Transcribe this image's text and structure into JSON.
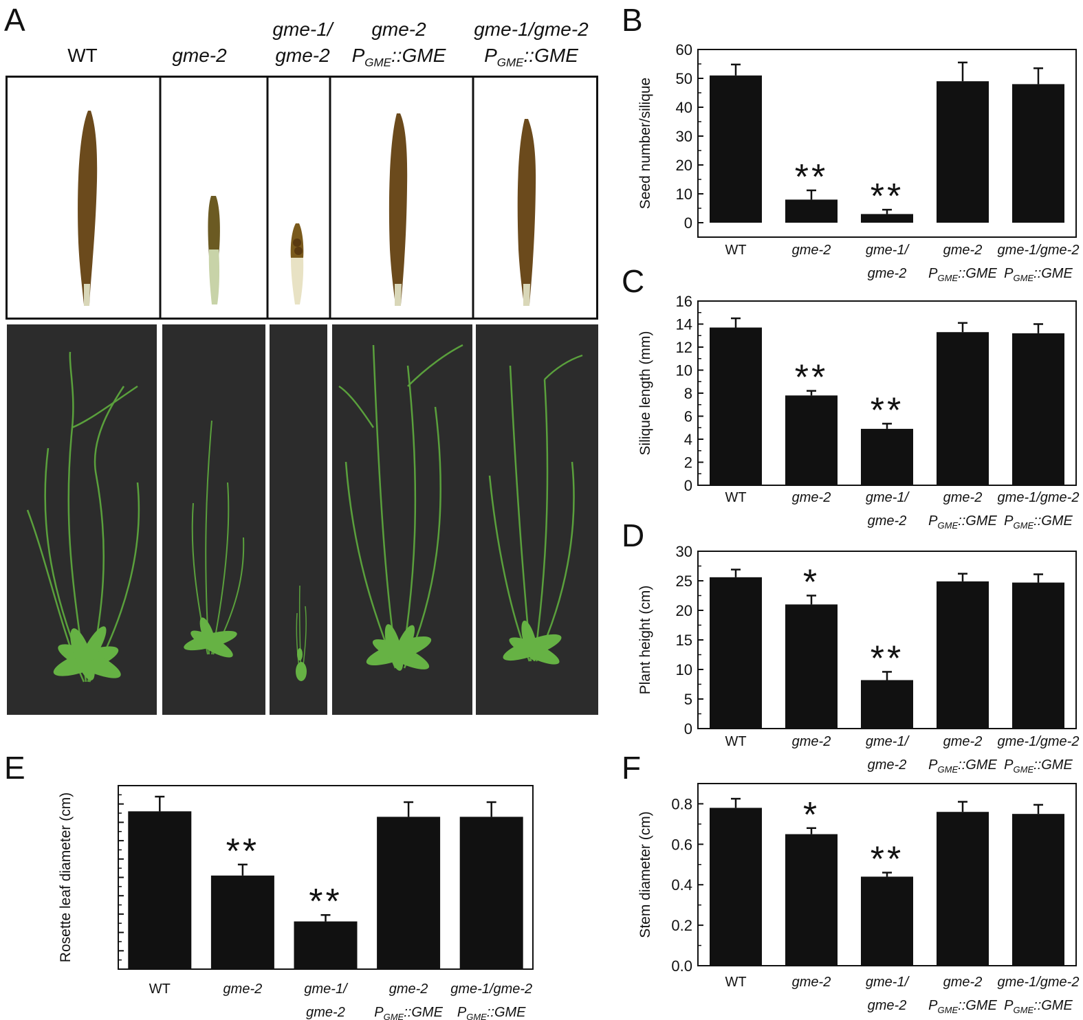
{
  "panel_letters": {
    "a": "A",
    "b": "B",
    "c": "C",
    "d": "D",
    "e": "E",
    "f": "F"
  },
  "genotypes": [
    {
      "line1": "WT",
      "line2": "",
      "promoter": "",
      "sub": "",
      "suffix": ""
    },
    {
      "line1": "gme-2",
      "line2": "",
      "promoter": "",
      "sub": "",
      "suffix": ""
    },
    {
      "line1": "gme-1/",
      "line2": "gme-2",
      "promoter": "",
      "sub": "",
      "suffix": ""
    },
    {
      "line1": "gme-2",
      "line2": "",
      "promoter": "P",
      "sub": "GME",
      "suffix": "::GME"
    },
    {
      "line1": "gme-1/gme-2",
      "line2": "",
      "promoter": "P",
      "sub": "GME",
      "suffix": "::GME"
    }
  ],
  "colors": {
    "bar": "#111111",
    "photo_bg": "#2c2c2c",
    "silique": "#6b4a1c",
    "seed": "#4a3210",
    "stem": "#5aa03c",
    "leaf": "#66b244"
  },
  "chart_data": [
    {
      "panel": "B",
      "type": "bar",
      "ylabel": "Seed number/silique",
      "categories": [
        "WT",
        "gme-2",
        "gme-1/gme-2",
        "gme-2 PGME::GME",
        "gme-1/gme-2 PGME::GME"
      ],
      "values": [
        51,
        8,
        3,
        49,
        48
      ],
      "errors": [
        3.8,
        3.2,
        1.5,
        6.5,
        5.5
      ],
      "significance": [
        "",
        "**",
        "**",
        "",
        ""
      ],
      "ylim": [
        -5,
        60
      ],
      "ticks": [
        0,
        10,
        20,
        30,
        40,
        50,
        60
      ],
      "tick_labels": [
        "0",
        "10",
        "20",
        "30",
        "40",
        "50",
        "60"
      ]
    },
    {
      "panel": "C",
      "type": "bar",
      "ylabel": "Silique length (mm)",
      "categories": [
        "WT",
        "gme-2",
        "gme-1/gme-2",
        "gme-2 PGME::GME",
        "gme-1/gme-2 PGME::GME"
      ],
      "values": [
        13.7,
        7.8,
        4.9,
        13.3,
        13.2
      ],
      "errors": [
        0.8,
        0.4,
        0.45,
        0.8,
        0.8
      ],
      "significance": [
        "",
        "**",
        "**",
        "",
        ""
      ],
      "ylim": [
        0,
        16
      ],
      "ticks": [
        0,
        2,
        4,
        6,
        8,
        10,
        12,
        14,
        16
      ],
      "tick_labels": [
        "0",
        "2",
        "4",
        "6",
        "8",
        "10",
        "12",
        "14",
        "16"
      ]
    },
    {
      "panel": "D",
      "type": "bar",
      "ylabel": "Plant height (cm)",
      "categories": [
        "WT",
        "gme-2",
        "gme-1/gme-2",
        "gme-2 PGME::GME",
        "gme-1/gme-2 PGME::GME"
      ],
      "values": [
        25.6,
        21,
        8.2,
        24.9,
        24.7
      ],
      "errors": [
        1.3,
        1.5,
        1.4,
        1.3,
        1.4
      ],
      "significance": [
        "",
        "*",
        "**",
        "",
        ""
      ],
      "ylim": [
        0,
        30
      ],
      "ticks": [
        0,
        5,
        10,
        15,
        20,
        25,
        30
      ],
      "tick_labels": [
        "0",
        "5",
        "10",
        "15",
        "20",
        "25",
        "30"
      ]
    },
    {
      "panel": "E",
      "type": "bar",
      "ylabel": "Rosette leaf diameter (cm)",
      "categories": [
        "WT",
        "gme-2",
        "gme-1/gme-2",
        "gme-2 PGME::GME",
        "gme-1/gme-2 PGME::GME"
      ],
      "values": [
        8.6,
        5.1,
        2.6,
        8.3,
        8.3
      ],
      "errors": [
        0.8,
        0.6,
        0.35,
        0.8,
        0.8
      ],
      "significance": [
        "",
        "**",
        "**",
        "",
        ""
      ],
      "ylim": [
        0,
        10
      ],
      "ticks": [
        0,
        1,
        2,
        3,
        4,
        5,
        6,
        7,
        8,
        9,
        10
      ],
      "tick_labels": [
        "",
        "",
        "",
        "",
        "",
        "",
        "",
        "",
        "",
        "",
        ""
      ]
    },
    {
      "panel": "F",
      "type": "bar",
      "ylabel": "Stem diameter (cm)",
      "categories": [
        "WT",
        "gme-2",
        "gme-1/gme-2",
        "gme-2 PGME::GME",
        "gme-1/gme-2 PGME::GME"
      ],
      "values": [
        0.78,
        0.65,
        0.44,
        0.76,
        0.75
      ],
      "errors": [
        0.045,
        0.03,
        0.02,
        0.05,
        0.045
      ],
      "significance": [
        "",
        "*",
        "**",
        "",
        ""
      ],
      "ylim": [
        0,
        0.9
      ],
      "ticks": [
        0,
        0.2,
        0.4,
        0.6,
        0.8
      ],
      "tick_labels": [
        "0.0",
        "0.2",
        "0.4",
        "0.6",
        "0.8"
      ]
    }
  ]
}
